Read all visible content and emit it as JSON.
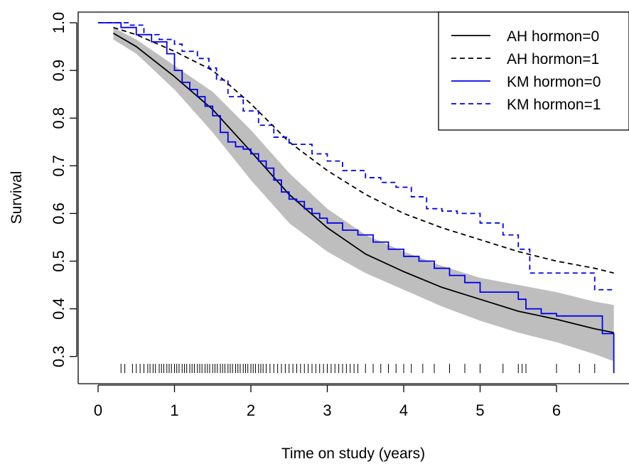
{
  "chart_data": {
    "type": "line",
    "title": "",
    "xlabel": "Time on study (years)",
    "ylabel": "Survival",
    "xlim": [
      0,
      6.8
    ],
    "ylim": [
      0.27,
      1.0
    ],
    "x_ticks": [
      "0",
      "1",
      "2",
      "3",
      "4",
      "5",
      "6"
    ],
    "y_ticks": [
      "0.3",
      "0.4",
      "0.5",
      "0.6",
      "0.7",
      "0.8",
      "0.9",
      "1.0"
    ],
    "legend_position": "top-right",
    "grid": false,
    "colors": {
      "ah": "#000000",
      "km": "#0000ee",
      "band": "#bebebe"
    },
    "legend": [
      {
        "label": "AH hormon=0",
        "color": "#000000",
        "dash": "solid"
      },
      {
        "label": "AH hormon=1",
        "color": "#000000",
        "dash": "dashed"
      },
      {
        "label": "KM hormon=0",
        "color": "#0000ee",
        "dash": "solid"
      },
      {
        "label": "KM hormon=1",
        "color": "#0000ee",
        "dash": "dashed"
      }
    ],
    "confidence_band": {
      "x": [
        0.2,
        0.5,
        1.0,
        1.5,
        2.0,
        2.5,
        3.0,
        3.5,
        4.0,
        4.5,
        5.0,
        5.5,
        6.0,
        6.5,
        6.75
      ],
      "lower": [
        0.965,
        0.935,
        0.86,
        0.77,
        0.67,
        0.58,
        0.52,
        0.475,
        0.44,
        0.405,
        0.375,
        0.35,
        0.33,
        0.305,
        0.29
      ],
      "upper": [
        0.99,
        0.965,
        0.91,
        0.855,
        0.775,
        0.685,
        0.61,
        0.555,
        0.52,
        0.49,
        0.465,
        0.45,
        0.435,
        0.415,
        0.408
      ]
    },
    "series": [
      {
        "name": "AH hormon=0",
        "style": "smooth",
        "color": "#000000",
        "dash": "solid",
        "x": [
          0.2,
          0.5,
          1.0,
          1.5,
          2.0,
          2.5,
          3.0,
          3.5,
          4.0,
          4.5,
          5.0,
          5.5,
          6.0,
          6.5,
          6.75
        ],
        "y": [
          0.978,
          0.95,
          0.887,
          0.818,
          0.73,
          0.64,
          0.57,
          0.515,
          0.478,
          0.445,
          0.42,
          0.395,
          0.378,
          0.358,
          0.35
        ]
      },
      {
        "name": "AH hormon=1",
        "style": "smooth",
        "color": "#000000",
        "dash": "dashed",
        "x": [
          0.2,
          0.5,
          1.0,
          1.5,
          2.0,
          2.5,
          3.0,
          3.5,
          4.0,
          4.5,
          5.0,
          5.5,
          6.0,
          6.5,
          6.75
        ],
        "y": [
          0.99,
          0.975,
          0.94,
          0.9,
          0.83,
          0.75,
          0.69,
          0.64,
          0.6,
          0.57,
          0.545,
          0.52,
          0.5,
          0.485,
          0.475
        ]
      },
      {
        "name": "KM hormon=0",
        "style": "step",
        "color": "#0000ee",
        "dash": "solid",
        "x": [
          0,
          0.3,
          0.5,
          0.7,
          0.9,
          1.0,
          1.1,
          1.2,
          1.3,
          1.4,
          1.5,
          1.6,
          1.7,
          1.8,
          1.9,
          2.0,
          2.1,
          2.2,
          2.3,
          2.4,
          2.5,
          2.6,
          2.7,
          2.8,
          2.9,
          3.0,
          3.2,
          3.4,
          3.6,
          3.8,
          4.0,
          4.2,
          4.4,
          4.6,
          4.8,
          5.0,
          5.3,
          5.5,
          5.6,
          5.8,
          6.0,
          6.3,
          6.6,
          6.75
        ],
        "y": [
          1.0,
          0.99,
          0.975,
          0.96,
          0.935,
          0.9,
          0.875,
          0.86,
          0.845,
          0.825,
          0.805,
          0.77,
          0.75,
          0.74,
          0.735,
          0.725,
          0.71,
          0.695,
          0.67,
          0.645,
          0.63,
          0.625,
          0.61,
          0.6,
          0.59,
          0.58,
          0.565,
          0.555,
          0.54,
          0.525,
          0.51,
          0.5,
          0.485,
          0.47,
          0.455,
          0.435,
          0.435,
          0.42,
          0.4,
          0.39,
          0.385,
          0.385,
          0.348,
          0.265
        ]
      },
      {
        "name": "KM hormon=1",
        "style": "step",
        "color": "#0000ee",
        "dash": "dashed",
        "x": [
          0,
          0.4,
          0.6,
          0.8,
          1.0,
          1.1,
          1.3,
          1.45,
          1.55,
          1.7,
          1.9,
          2.1,
          2.3,
          2.5,
          2.8,
          3.0,
          3.2,
          3.5,
          3.7,
          3.9,
          4.1,
          4.3,
          4.5,
          4.7,
          5.0,
          5.3,
          5.5,
          5.65,
          6.0,
          6.5,
          6.75
        ],
        "y": [
          1.0,
          0.995,
          0.975,
          0.965,
          0.955,
          0.94,
          0.925,
          0.905,
          0.88,
          0.845,
          0.815,
          0.785,
          0.76,
          0.745,
          0.725,
          0.71,
          0.69,
          0.675,
          0.665,
          0.655,
          0.635,
          0.61,
          0.605,
          0.6,
          0.58,
          0.555,
          0.525,
          0.475,
          0.475,
          0.44,
          0.44
        ]
      }
    ],
    "rug": [
      0.3,
      0.35,
      0.45,
      0.5,
      0.55,
      0.6,
      0.65,
      0.68,
      0.72,
      0.75,
      0.8,
      0.83,
      0.86,
      0.9,
      0.93,
      0.96,
      1.0,
      1.03,
      1.06,
      1.1,
      1.13,
      1.16,
      1.2,
      1.23,
      1.26,
      1.3,
      1.33,
      1.36,
      1.4,
      1.43,
      1.46,
      1.5,
      1.53,
      1.56,
      1.6,
      1.63,
      1.66,
      1.7,
      1.73,
      1.76,
      1.8,
      1.83,
      1.86,
      1.9,
      1.93,
      1.96,
      2.0,
      2.03,
      2.06,
      2.1,
      2.13,
      2.16,
      2.2,
      2.25,
      2.3,
      2.35,
      2.4,
      2.45,
      2.5,
      2.55,
      2.6,
      2.65,
      2.7,
      2.75,
      2.8,
      2.85,
      2.9,
      2.95,
      3.0,
      3.05,
      3.1,
      3.15,
      3.2,
      3.25,
      3.3,
      3.35,
      3.4,
      3.5,
      3.6,
      3.7,
      3.8,
      3.9,
      4.0,
      4.1,
      4.25,
      4.4,
      4.6,
      4.8,
      5.0,
      5.3,
      5.5,
      5.55,
      5.6,
      6.0,
      6.3,
      6.5
    ]
  }
}
